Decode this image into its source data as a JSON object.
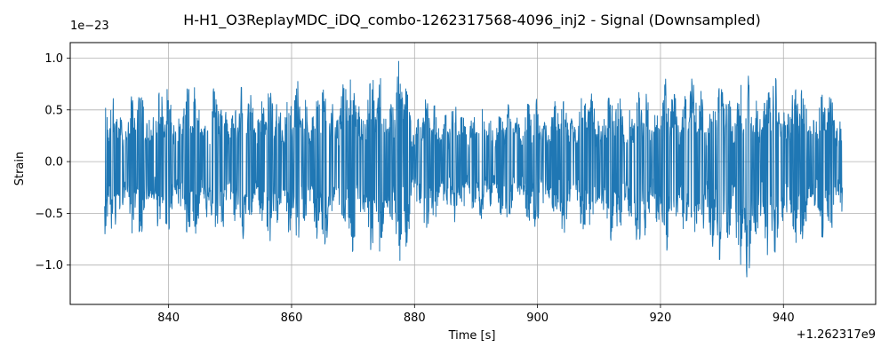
{
  "chart_data": {
    "type": "line",
    "title": "H-H1_O3ReplayMDC_iDQ_combo-1262317568-4096_inj2 - Signal (Downsampled)",
    "xlabel": "Time [s]",
    "ylabel": "Strain",
    "y_scale_note": "1e−23",
    "x_offset_note": "+1.262317e9",
    "xlim": [
      824,
      955
    ],
    "ylim": [
      -1.38,
      1.15
    ],
    "x_ticks": [
      {
        "value": 840,
        "label": "840"
      },
      {
        "value": 860,
        "label": "860"
      },
      {
        "value": 880,
        "label": "880"
      },
      {
        "value": 900,
        "label": "900"
      },
      {
        "value": 920,
        "label": "920"
      },
      {
        "value": 940,
        "label": "940"
      }
    ],
    "y_ticks": [
      {
        "value": 1.0,
        "label": "1.0"
      },
      {
        "value": 0.5,
        "label": "0.5"
      },
      {
        "value": 0.0,
        "label": "0.0"
      },
      {
        "value": -0.5,
        "label": "−0.5"
      },
      {
        "value": -1.0,
        "label": "−1.0"
      }
    ],
    "grid": true,
    "series": [
      {
        "color": "#1f77b4",
        "x_range": [
          829.6,
          949.6
        ],
        "envelope": {
          "t": [
            830,
            835,
            840,
            845,
            850,
            855,
            860,
            865,
            870,
            875,
            878,
            880,
            885,
            890,
            895,
            900,
            905,
            910,
            915,
            920,
            925,
            930,
            935,
            940,
            945,
            949.5
          ],
          "upper": [
            0.62,
            0.72,
            0.78,
            0.82,
            0.8,
            0.78,
            0.8,
            0.85,
            0.9,
            0.9,
            1.02,
            0.65,
            0.62,
            0.55,
            0.6,
            0.65,
            0.7,
            0.72,
            0.74,
            0.8,
            0.85,
            0.88,
            0.9,
            0.88,
            0.78,
            0.65
          ],
          "lower": [
            -0.78,
            -0.75,
            -0.76,
            -0.78,
            -0.77,
            -0.78,
            -0.82,
            -0.9,
            -0.92,
            -0.95,
            -1.05,
            -0.7,
            -0.62,
            -0.58,
            -0.62,
            -0.7,
            -0.75,
            -0.78,
            -0.8,
            -0.9,
            -1.0,
            -1.0,
            -1.25,
            -0.95,
            -0.82,
            -0.72
          ]
        }
      }
    ]
  }
}
